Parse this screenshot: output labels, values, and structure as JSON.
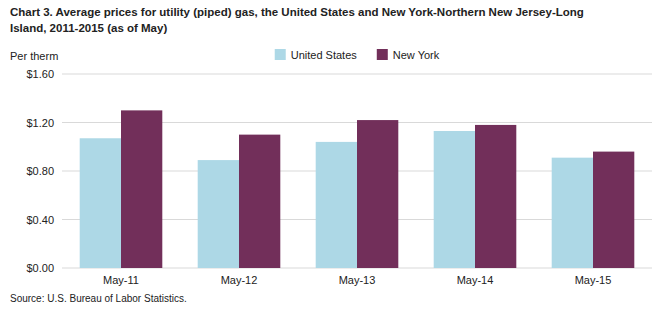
{
  "chart_data": {
    "type": "bar",
    "title": "Chart 3. Average prices for utility (piped) gas, the United States and New York-Northern New Jersey-Long",
    "subtitle": "Island, 2011-2015 (as of May)",
    "ylabel": "Per therm",
    "source": "Source: U.S. Bureau of Labor Statistics.",
    "categories": [
      "May-11",
      "May-12",
      "May-13",
      "May-14",
      "May-15"
    ],
    "series": [
      {
        "name": "United States",
        "color": "#ADD8E6",
        "values": [
          1.07,
          0.89,
          1.04,
          1.13,
          0.91
        ]
      },
      {
        "name": "New York",
        "color": "#722F5A",
        "values": [
          1.3,
          1.1,
          1.22,
          1.18,
          0.96
        ]
      }
    ],
    "ylim": [
      0,
      1.6
    ],
    "yticks": [
      {
        "value": 0.0,
        "label": "$0.00"
      },
      {
        "value": 0.4,
        "label": "$0.40"
      },
      {
        "value": 0.8,
        "label": "$0.80"
      },
      {
        "value": 1.2,
        "label": "$1.20"
      },
      {
        "value": 1.6,
        "label": "$1.60"
      }
    ],
    "grid": true,
    "legend": "top"
  }
}
